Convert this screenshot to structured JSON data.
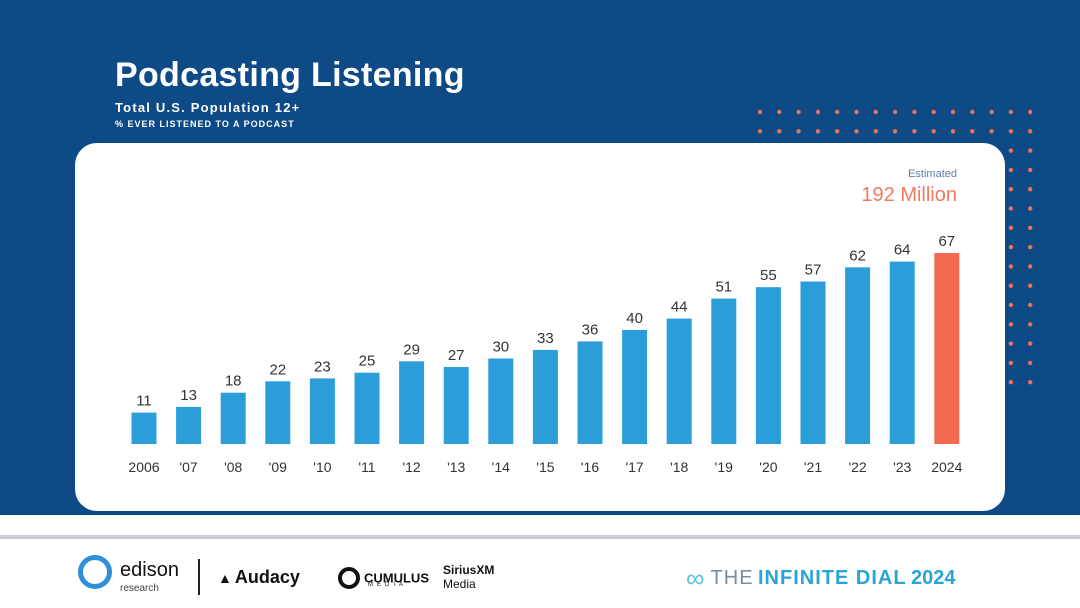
{
  "header": {
    "title": "Podcasting Listening",
    "subtitle": "Total U.S. Population 12+",
    "subtitle2": "% EVER LISTENED TO A PODCAST"
  },
  "estimate": {
    "label": "Estimated",
    "value": "192 Million"
  },
  "colors": {
    "background": "#0d4a86",
    "bar": "#2b9dd8",
    "highlight_bar": "#f26a50",
    "estimate_text": "#f07a62",
    "dots": "#e8735e"
  },
  "chart_data": {
    "type": "bar",
    "title": "Podcasting Listening",
    "categories": [
      "2006",
      "'07",
      "'08",
      "'09",
      "'10",
      "'11",
      "'12",
      "'13",
      "'14",
      "'15",
      "'16",
      "'17",
      "'18",
      "'19",
      "'20",
      "'21",
      "'22",
      "'23",
      "2024"
    ],
    "values": [
      11,
      13,
      18,
      22,
      23,
      25,
      29,
      27,
      30,
      33,
      36,
      40,
      44,
      51,
      55,
      57,
      62,
      64,
      67
    ],
    "highlight_category": "2024",
    "ylim": [
      0,
      67
    ],
    "grid": false,
    "legend": "none"
  },
  "footer": {
    "logos": {
      "edison": "edison",
      "edison_sub": "research",
      "audacy": "Audacy",
      "cumulus": "CUMULUS",
      "cumulus_sub": "MEDIA",
      "sirius_top": "SiriusXM",
      "sirius_bottom": "Media"
    },
    "dial": {
      "the": "THE",
      "infinite": "INFINITE DIAL",
      "year": "2024",
      "icon": "infinity-icon"
    }
  }
}
